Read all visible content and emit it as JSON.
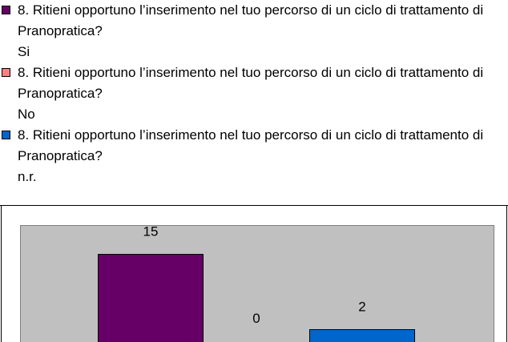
{
  "chart_data": {
    "type": "bar",
    "series": [
      {
        "name": "8. Ritieni opportuno l’inserimento nel tuo percorso di un ciclo di trattamento di Pranopratica?\nSi",
        "color": "#660066",
        "values": [
          15
        ]
      },
      {
        "name": "8. Ritieni opportuno l’inserimento nel tuo percorso di un ciclo di trattamento di Pranopratica?\nNo",
        "color": "#ff8080",
        "values": [
          0
        ]
      },
      {
        "name": "8. Ritieni opportuno l’inserimento nel tuo percorso di un ciclo di trattamento di Pranopratica?\nn.r.",
        "color": "#0066cc",
        "values": [
          2
        ]
      }
    ],
    "legend": "top"
  }
}
